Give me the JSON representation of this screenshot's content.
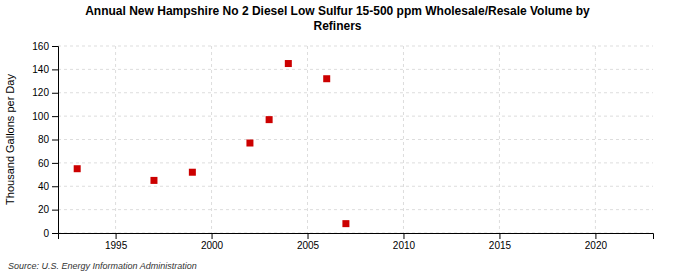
{
  "chart_data": {
    "type": "scatter",
    "title": "Annual New Hampshire No 2 Diesel Low Sulfur 15-500 ppm Wholesale/Resale Volume by\nRefiners",
    "y_label": "Thousand Gallons per Day",
    "annotations": [
      "Source: U.S. Energy Information Administration"
    ],
    "x": [
      1993,
      1997,
      1999,
      2002,
      2003,
      2004,
      2006,
      2007
    ],
    "values": [
      55,
      45,
      52,
      77,
      97,
      145,
      132,
      8
    ],
    "color": "#cc0000",
    "marker": "square",
    "xlim": [
      1992,
      2023
    ],
    "xticks": [
      1995,
      2000,
      2005,
      2010,
      2015,
      2020
    ],
    "ylim": [
      0,
      160
    ],
    "yticks": [
      0,
      20,
      40,
      60,
      80,
      100,
      120,
      140,
      160
    ],
    "grid": true
  }
}
